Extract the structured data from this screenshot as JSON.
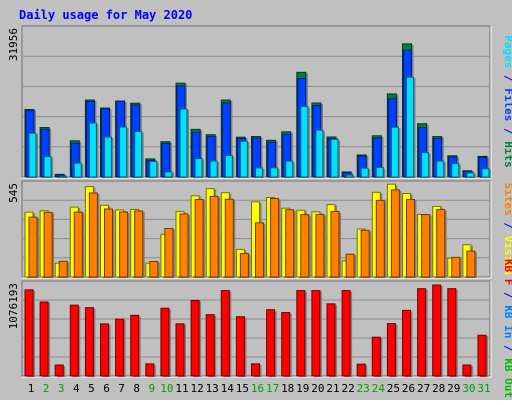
{
  "title": "Daily usage for May 2020",
  "colors": {
    "background": "#c0c0c0",
    "title": "#0000ff",
    "hits": "#008040",
    "files": "#0040ff",
    "pages": "#00e0ff",
    "visits": "#ffff00",
    "sites": "#ff8000",
    "kbin": "#0080ff",
    "kbout": "#00c000",
    "kbf": "#ff0000"
  },
  "chart_data": [
    {
      "type": "bar",
      "panel": "top",
      "ymax_label": "31956",
      "ylim": [
        0,
        31956
      ],
      "grid": true,
      "right_label_parts": [
        {
          "text": "Pages",
          "color_key": "pages"
        },
        {
          "text": " / ",
          "color_key": "title"
        },
        {
          "text": "Files",
          "color_key": "files"
        },
        {
          "text": " / ",
          "color_key": "title"
        },
        {
          "text": "Hits",
          "color_key": "hits"
        }
      ],
      "categories": [
        "1",
        "2",
        "3",
        "4",
        "5",
        "6",
        "7",
        "8",
        "9",
        "10",
        "11",
        "12",
        "13",
        "14",
        "15",
        "16",
        "17",
        "18",
        "19",
        "20",
        "21",
        "22",
        "23",
        "24",
        "25",
        "26",
        "27",
        "28",
        "29",
        "30",
        "31"
      ],
      "series": [
        {
          "name": "Hits",
          "color_key": "hits",
          "values": [
            14470,
            10610,
            570,
            7760,
            16510,
            14790,
            16290,
            15830,
            3880,
            7570,
            20120,
            10220,
            9070,
            16500,
            8540,
            8680,
            7880,
            9690,
            22450,
            15870,
            8580,
            1080,
            4730,
            8840,
            17820,
            28550,
            11430,
            8670,
            4560,
            1340,
            4420
          ]
        },
        {
          "name": "Files",
          "color_key": "files",
          "values": [
            14220,
            10230,
            480,
            7250,
            16190,
            14560,
            16250,
            15440,
            3570,
            7180,
            19540,
            9610,
            8700,
            15910,
            8260,
            8330,
            7460,
            9170,
            21100,
            15310,
            8240,
            920,
            4460,
            8390,
            16790,
            27190,
            10600,
            8290,
            4290,
            1190,
            4210
          ]
        },
        {
          "name": "Pages",
          "color_key": "pages",
          "values": [
            9380,
            4380,
            190,
            2980,
            11590,
            8560,
            10730,
            9760,
            3310,
            1100,
            14580,
            3960,
            3410,
            4610,
            7660,
            1950,
            1970,
            3390,
            15120,
            10030,
            8080,
            400,
            1900,
            2030,
            10680,
            21390,
            5220,
            3400,
            2890,
            880,
            1760
          ]
        }
      ]
    },
    {
      "type": "bar",
      "panel": "middle",
      "ymax_label": "545",
      "ylim": [
        0,
        545
      ],
      "grid": true,
      "right_label_parts": [
        {
          "text": "Sites",
          "color_key": "sites"
        },
        {
          "text": " / ",
          "color_key": "title"
        },
        {
          "text": "Visits",
          "color_key": "visits"
        }
      ],
      "categories": [
        "1",
        "2",
        "3",
        "4",
        "5",
        "6",
        "7",
        "8",
        "9",
        "10",
        "11",
        "12",
        "13",
        "14",
        "15",
        "16",
        "17",
        "18",
        "19",
        "20",
        "21",
        "22",
        "23",
        "24",
        "25",
        "26",
        "27",
        "28",
        "29",
        "30",
        "31"
      ],
      "series": [
        {
          "name": "Visits",
          "color_key": "visits",
          "values": [
            376,
            384,
            80,
            405,
            524,
            416,
            389,
            392,
            80,
            248,
            380,
            471,
            512,
            489,
            160,
            436,
            461,
            399,
            387,
            378,
            420,
            94,
            278,
            491,
            538,
            484,
            363,
            409,
            110,
            187,
            0
          ]
        },
        {
          "name": "Sites",
          "color_key": "sites",
          "values": [
            347,
            375,
            91,
            376,
            487,
            394,
            377,
            383,
            90,
            281,
            366,
            449,
            467,
            451,
            136,
            314,
            455,
            390,
            361,
            363,
            380,
            132,
            271,
            444,
            505,
            449,
            362,
            391,
            114,
            150,
            0
          ]
        }
      ]
    },
    {
      "type": "bar",
      "panel": "bottom",
      "ymax_label": "1076193",
      "ylim": [
        0,
        1076193
      ],
      "grid": true,
      "right_label_parts": [
        {
          "text": "KB F",
          "color_key": "kbf"
        },
        {
          "text": " / ",
          "color_key": "title"
        },
        {
          "text": "KB In",
          "color_key": "kbin"
        },
        {
          "text": " / ",
          "color_key": "title"
        },
        {
          "text": "KB Out",
          "color_key": "kbout"
        }
      ],
      "categories": [
        "1",
        "2",
        "3",
        "4",
        "5",
        "6",
        "7",
        "8",
        "9",
        "10",
        "11",
        "12",
        "13",
        "14",
        "15",
        "16",
        "17",
        "18",
        "19",
        "20",
        "21",
        "22",
        "23",
        "24",
        "25",
        "26",
        "27",
        "28",
        "29",
        "30",
        "31"
      ],
      "series": [
        {
          "name": "KB F",
          "color_key": "kbf",
          "values": [
            997310,
            856930,
            127320,
            819820,
            790730,
            603560,
            658240,
            702210,
            140560,
            784020,
            603560,
            873960,
            709430,
            988540,
            685910,
            140560,
            767380,
            734260,
            988540,
            988540,
            834900,
            988540,
            136980,
            449010,
            606190,
            759620,
            1010320,
            1052840,
            1010320,
            127320,
            471820
          ]
        }
      ]
    }
  ],
  "x_labels": [
    {
      "text": "1",
      "weekend": false
    },
    {
      "text": "2",
      "weekend": true
    },
    {
      "text": "3",
      "weekend": true
    },
    {
      "text": "4",
      "weekend": false
    },
    {
      "text": "5",
      "weekend": false
    },
    {
      "text": "6",
      "weekend": false
    },
    {
      "text": "7",
      "weekend": false
    },
    {
      "text": "8",
      "weekend": false
    },
    {
      "text": "9",
      "weekend": true
    },
    {
      "text": "10",
      "weekend": true
    },
    {
      "text": "11",
      "weekend": false
    },
    {
      "text": "12",
      "weekend": false
    },
    {
      "text": "13",
      "weekend": false
    },
    {
      "text": "14",
      "weekend": false
    },
    {
      "text": "15",
      "weekend": false
    },
    {
      "text": "16",
      "weekend": true
    },
    {
      "text": "17",
      "weekend": true
    },
    {
      "text": "18",
      "weekend": false
    },
    {
      "text": "19",
      "weekend": false
    },
    {
      "text": "20",
      "weekend": false
    },
    {
      "text": "21",
      "weekend": false
    },
    {
      "text": "22",
      "weekend": false
    },
    {
      "text": "23",
      "weekend": true
    },
    {
      "text": "24",
      "weekend": true
    },
    {
      "text": "25",
      "weekend": false
    },
    {
      "text": "26",
      "weekend": false
    },
    {
      "text": "27",
      "weekend": false
    },
    {
      "text": "28",
      "weekend": false
    },
    {
      "text": "29",
      "weekend": false
    },
    {
      "text": "30",
      "weekend": true
    },
    {
      "text": "31",
      "weekend": true
    }
  ]
}
